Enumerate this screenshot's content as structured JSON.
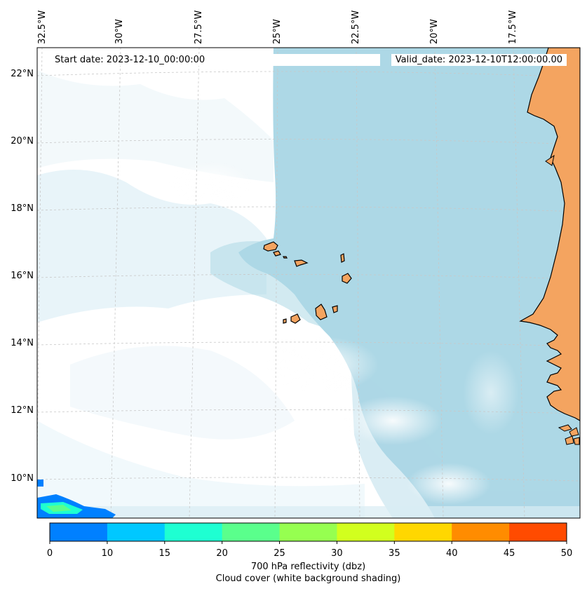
{
  "map": {
    "longitude_labels": [
      "32.5°W",
      "30°W",
      "27.5°W",
      "25°W",
      "22.5°W",
      "20°W",
      "17.5°W"
    ],
    "latitude_labels": [
      "22°N",
      "20°N",
      "18°N",
      "16°N",
      "14°N",
      "12°N",
      "10°N"
    ],
    "start_date": "Start date: 2023-12-10_00:00:00",
    "valid_date": "Valid_date: 2023-12-10T12:00:00.00",
    "land_color": "#f4a460",
    "coastline_color": "#000000",
    "ocean_cloud_color": "#add8e6",
    "gridline_color": "#c8c8c8"
  },
  "colorbar": {
    "bounds": [
      0,
      10,
      15,
      20,
      25,
      30,
      35,
      40,
      45,
      50
    ],
    "tick_labels": [
      "0",
      "10",
      "15",
      "20",
      "25",
      "30",
      "35",
      "40",
      "45",
      "50"
    ],
    "colors": [
      "#0080ff",
      "#00c8ff",
      "#1effd2",
      "#5aff8c",
      "#96ff50",
      "#d2ff1e",
      "#ffd700",
      "#ff8c00",
      "#ff4b00"
    ],
    "label_line1": "700 hPa reflectivity (dbz)",
    "label_line2": "Cloud cover (white background shading)"
  }
}
